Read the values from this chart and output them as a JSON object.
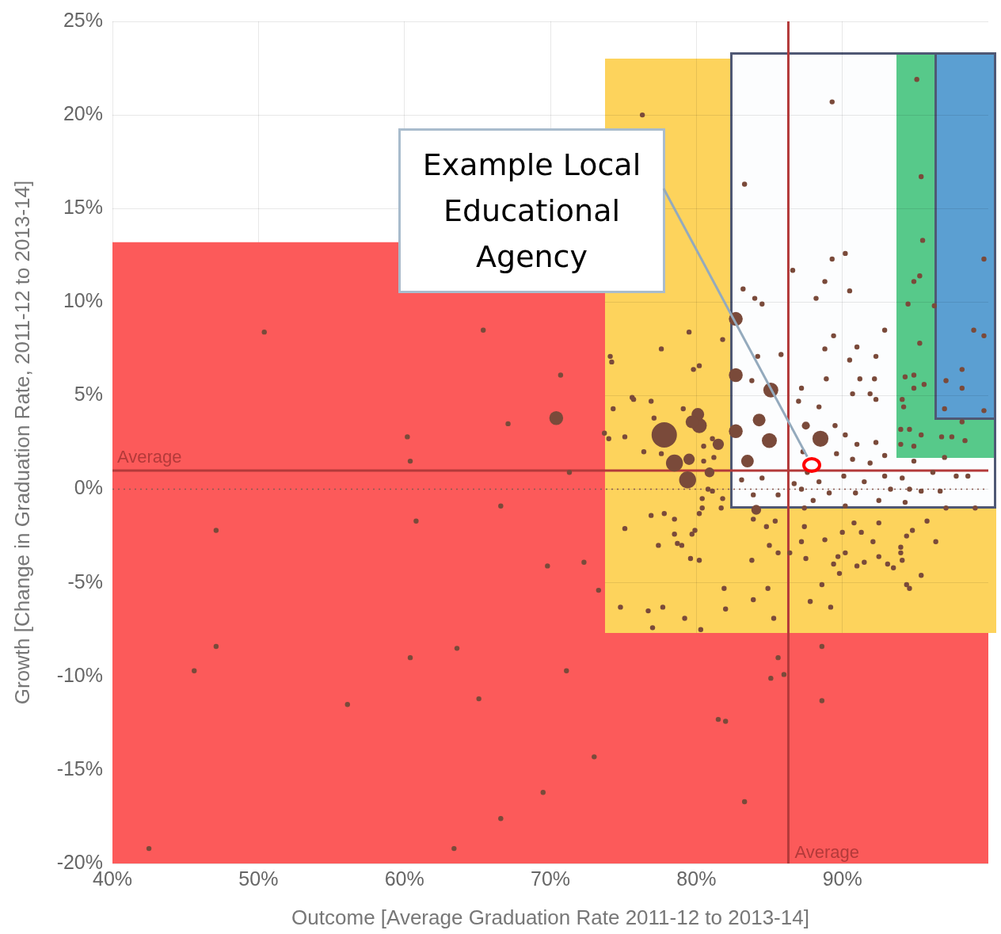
{
  "chart_data": {
    "type": "bubble",
    "xlabel": "Outcome [Average Graduation Rate 2011-12 to 2013-14]",
    "ylabel": "Growth [Change in Graduation Rate, 2011-12 to 2013-14]",
    "xlim": [
      40,
      100
    ],
    "xticks": [
      {
        "value": 40,
        "label": "40%"
      },
      {
        "value": 50,
        "label": "50%"
      },
      {
        "value": 60,
        "label": "60%"
      },
      {
        "value": 70,
        "label": "70%"
      },
      {
        "value": 80,
        "label": "80%"
      },
      {
        "value": 90,
        "label": "90%"
      }
    ],
    "ylim": [
      -20,
      25
    ],
    "yticks": [
      {
        "value": -20,
        "label": "-20%"
      },
      {
        "value": -15,
        "label": "-15%"
      },
      {
        "value": -10,
        "label": "-10%"
      },
      {
        "value": -5,
        "label": "-5%"
      },
      {
        "value": 0,
        "label": "0%"
      },
      {
        "value": 5,
        "label": "5%"
      },
      {
        "value": 10,
        "label": "10%"
      },
      {
        "value": 15,
        "label": "15%"
      },
      {
        "value": 20,
        "label": "20%"
      },
      {
        "value": 25,
        "label": "25%"
      }
    ],
    "grid": true,
    "legend": false,
    "color": "#7a4a3a",
    "x": [
      50.4,
      65.4,
      70.7,
      70.4,
      67.1,
      60.2,
      60.4,
      71.3,
      66.6,
      60.8,
      47.1,
      69.8,
      72.3,
      73.3,
      47.1,
      45.6,
      60.4,
      63.6,
      71.1,
      56.1,
      65.1,
      73.0,
      69.5,
      66.6,
      42.5,
      63.4,
      88.6,
      85.6,
      85.1,
      86.0,
      88.6,
      81.5,
      82.0,
      83.3,
      77.8,
      78.5,
      79.4,
      80.2,
      80.1,
      79.7,
      81.5,
      79.5,
      80.9,
      79.5,
      77.6,
      81.8,
      74.1,
      74.2,
      80.2,
      79.8,
      75.7,
      76.9,
      74.3,
      79.1,
      77.1,
      75.1,
      73.7,
      76.4,
      77.6,
      80.5,
      80.5,
      81.2,
      81.1,
      80.8,
      81.1,
      80.4,
      81.8,
      80.4,
      81.7,
      80.2,
      77.8,
      76.9,
      78.5,
      75.1,
      79.9,
      79.7,
      78.5,
      77.4,
      78.7,
      79.0,
      79.6,
      80.2,
      83.8,
      84.8,
      85.4,
      83.9,
      86.4,
      85.6,
      85.0,
      87.4,
      87.2,
      88.8,
      90.0,
      91.3,
      90.8,
      92.5,
      92.1,
      95.8,
      94.8,
      94.4,
      96.4,
      94.0,
      94.0,
      94.1,
      90.2,
      89.7,
      91.0,
      91.5,
      92.5,
      93.1,
      93.5,
      95.4,
      94.4,
      94.6,
      89.4,
      89.8,
      87.5,
      88.6,
      84.9,
      81.9,
      83.9,
      87.8,
      89.2,
      82.0,
      85.3,
      74.8,
      76.7,
      77.7,
      79.2,
      77.0,
      80.3,
      76.3,
      75.6,
      74.0,
      89.3,
      83.3,
      90.2,
      89.3,
      86.6,
      88.8,
      90.5,
      88.2,
      82.7,
      83.2,
      84.0,
      84.5,
      89.4,
      92.9,
      88.8,
      91.0,
      92.3,
      90.5,
      84.2,
      85.8,
      82.7,
      85.1,
      88.9,
      91.2,
      92.2,
      90.7,
      91.9,
      87.2,
      83.8,
      87.0,
      88.4,
      92.3,
      84.3,
      87.5,
      89.5,
      88.5,
      85.0,
      82.7,
      83.5,
      90.2,
      91.0,
      92.3,
      90.7,
      89.6,
      87.3,
      91.9,
      92.9,
      83.1,
      84.5,
      86.7,
      88.4,
      90.1,
      91.5,
      92.9,
      94.1,
      96.2,
      97.8,
      98.6,
      94.6,
      95.4,
      96.7,
      93.3,
      90.9,
      89.1,
      87.2,
      85.6,
      83.9,
      84.1,
      88.0,
      90.2,
      92.5,
      94.3,
      97.1,
      99.1,
      87.4,
      95.1,
      95.4,
      95.5,
      95.3,
      94.9,
      94.5,
      95.3,
      94.3,
      94.9,
      94.9,
      95.6,
      94.1,
      94.2,
      94.0,
      94.6,
      94.0,
      94.9,
      95.4,
      96.8,
      97.5,
      98.4,
      97.0,
      94.9,
      99.7,
      96.3,
      99.0,
      99.7,
      98.2,
      97.1,
      98.2,
      97.0,
      99.7,
      98.2,
      87.6
    ],
    "values": [
      8.4,
      8.5,
      6.1,
      3.8,
      3.5,
      2.8,
      1.5,
      0.9,
      -0.9,
      -1.7,
      -2.2,
      -4.1,
      -3.9,
      -5.4,
      -8.4,
      -9.7,
      -9.0,
      -8.5,
      -9.7,
      -11.5,
      -11.2,
      -14.3,
      -16.2,
      -17.6,
      -19.2,
      -19.2,
      -8.4,
      -9.0,
      -10.1,
      -9.9,
      -11.3,
      -12.3,
      -12.4,
      -16.7,
      2.9,
      1.4,
      0.5,
      3.4,
      4.0,
      3.6,
      2.4,
      1.6,
      0.9,
      8.4,
      7.5,
      8.0,
      7.1,
      6.8,
      6.6,
      6.4,
      4.8,
      4.7,
      4.3,
      4.3,
      3.8,
      2.8,
      3.0,
      2.0,
      1.9,
      2.3,
      1.5,
      1.7,
      2.7,
      0.0,
      -0.1,
      -0.5,
      -0.5,
      -1.0,
      -1.0,
      -1.3,
      -1.3,
      -1.4,
      -1.6,
      -2.1,
      -2.2,
      -2.4,
      -2.4,
      -3.0,
      -2.9,
      -3.0,
      -3.7,
      -3.8,
      -3.8,
      -2.0,
      -1.7,
      -1.6,
      -3.4,
      -3.4,
      -3.0,
      -2.0,
      -2.8,
      -2.7,
      -2.3,
      -2.3,
      -1.8,
      -1.8,
      -2.8,
      -1.7,
      -2.2,
      -2.5,
      -2.8,
      -3.1,
      -3.4,
      -3.8,
      -3.4,
      -3.6,
      -4.1,
      -3.9,
      -3.6,
      -4.0,
      -4.2,
      -4.6,
      -5.1,
      -5.3,
      -4.0,
      -4.5,
      -3.7,
      -5.1,
      -5.3,
      -5.3,
      -5.9,
      -6.0,
      -6.3,
      -6.4,
      -6.9,
      -6.3,
      -6.5,
      -6.3,
      -6.9,
      -7.4,
      -7.5,
      20.0,
      4.9,
      2.7,
      20.7,
      16.3,
      12.6,
      12.3,
      11.7,
      11.1,
      10.6,
      10.2,
      9.1,
      10.7,
      10.2,
      9.9,
      8.2,
      8.5,
      7.5,
      7.6,
      7.1,
      6.9,
      7.1,
      7.2,
      6.1,
      5.3,
      5.9,
      5.9,
      5.9,
      5.1,
      5.1,
      5.4,
      5.8,
      4.7,
      4.4,
      4.8,
      3.7,
      3.4,
      3.4,
      2.7,
      2.6,
      3.1,
      1.5,
      2.9,
      2.4,
      2.5,
      1.6,
      1.9,
      2.0,
      1.4,
      1.8,
      0.5,
      0.6,
      0.3,
      0.4,
      0.7,
      0.4,
      0.7,
      0.6,
      0.9,
      0.7,
      0.7,
      0.0,
      -0.1,
      -0.1,
      0.0,
      -0.2,
      -0.2,
      0.0,
      -0.3,
      -0.3,
      -1.1,
      -0.6,
      -0.9,
      -0.6,
      -0.7,
      -1.0,
      -1.0,
      -1.0,
      21.9,
      16.7,
      13.3,
      11.4,
      11.1,
      9.9,
      7.8,
      6.0,
      6.1,
      5.4,
      5.6,
      4.8,
      4.4,
      3.2,
      3.2,
      2.4,
      2.3,
      2.9,
      2.8,
      2.8,
      2.6,
      1.7,
      1.5,
      12.3,
      9.8,
      8.5,
      8.2,
      6.4,
      5.8,
      5.4,
      4.3,
      4.2,
      3.6,
      0.9
    ],
    "sizes": [
      0.04,
      0.04,
      0.04,
      0.3,
      0.04,
      0.04,
      0.04,
      0.04,
      0.04,
      0.04,
      0.04,
      0.04,
      0.04,
      0.04,
      0.04,
      0.04,
      0.04,
      0.04,
      0.04,
      0.04,
      0.04,
      0.04,
      0.04,
      0.04,
      0.04,
      0.04,
      0.04,
      0.04,
      0.04,
      0.04,
      0.04,
      0.04,
      0.04,
      0.04,
      1,
      0.45,
      0.45,
      0.35,
      0.25,
      0.25,
      0.2,
      0.2,
      0.15,
      0.04,
      0.04,
      0.04,
      0.04,
      0.04,
      0.04,
      0.04,
      0.04,
      0.04,
      0.04,
      0.04,
      0.04,
      0.04,
      0.04,
      0.04,
      0.04,
      0.04,
      0.04,
      0.04,
      0.04,
      0.04,
      0.04,
      0.04,
      0.04,
      0.04,
      0.04,
      0.04,
      0.04,
      0.04,
      0.04,
      0.04,
      0.04,
      0.04,
      0.04,
      0.04,
      0.04,
      0.04,
      0.04,
      0.04,
      0.04,
      0.04,
      0.04,
      0.04,
      0.04,
      0.04,
      0.04,
      0.04,
      0.04,
      0.04,
      0.04,
      0.04,
      0.04,
      0.04,
      0.04,
      0.04,
      0.04,
      0.04,
      0.04,
      0.04,
      0.04,
      0.04,
      0.04,
      0.04,
      0.04,
      0.04,
      0.04,
      0.04,
      0.04,
      0.04,
      0.04,
      0.04,
      0.04,
      0.04,
      0.04,
      0.04,
      0.04,
      0.04,
      0.04,
      0.04,
      0.04,
      0.04,
      0.04,
      0.04,
      0.04,
      0.04,
      0.04,
      0.04,
      0.04,
      0.04,
      0.04,
      0.04,
      0.04,
      0.04,
      0.04,
      0.04,
      0.04,
      0.04,
      0.04,
      0.04,
      0.3,
      0.04,
      0.04,
      0.04,
      0.04,
      0.04,
      0.04,
      0.04,
      0.04,
      0.04,
      0.04,
      0.04,
      0.3,
      0.35,
      0.04,
      0.04,
      0.04,
      0.04,
      0.04,
      0.04,
      0.04,
      0.04,
      0.04,
      0.04,
      0.25,
      0.1,
      0.04,
      0.4,
      0.35,
      0.3,
      0.25,
      0.04,
      0.04,
      0.04,
      0.04,
      0.04,
      0.04,
      0.04,
      0.04,
      0.04,
      0.04,
      0.04,
      0.04,
      0.04,
      0.04,
      0.04,
      0.04,
      0.04,
      0.04,
      0.04,
      0.04,
      0.04,
      0.04,
      0.04,
      0.04,
      0.04,
      0.04,
      0.04,
      0.04,
      0.15,
      0.04,
      0.04,
      0.04,
      0.04,
      0.04,
      0.04,
      0.04,
      0.04,
      0.04,
      0.04,
      0.04,
      0.04,
      0.04,
      0.04,
      0.04,
      0.04,
      0.04,
      0.04,
      0.04,
      0.04,
      0.04,
      0.04,
      0.04,
      0.04,
      0.04,
      0.04,
      0.04,
      0.04,
      0.04,
      0.04,
      0.04,
      0.04,
      0.04,
      0.04,
      0.04,
      0.04,
      0.04,
      0.04,
      0.04,
      0.04,
      0.04
    ],
    "bands": [
      {
        "axis": "y",
        "from": -20,
        "to": 13.2,
        "color": "#fc5a5a"
      }
    ],
    "ref_lines": [
      {
        "axis": "y",
        "value": 1.0,
        "label": "Average",
        "color": "#b33a3a"
      },
      {
        "axis": "x",
        "value": 86.3,
        "label": "Average",
        "color": "#b33a3a"
      },
      {
        "axis": "y",
        "value": 0,
        "color": "#8a5a50",
        "line_style": "dotted"
      }
    ],
    "annotations": [
      "Example Local Educational Agency"
    ]
  }
}
